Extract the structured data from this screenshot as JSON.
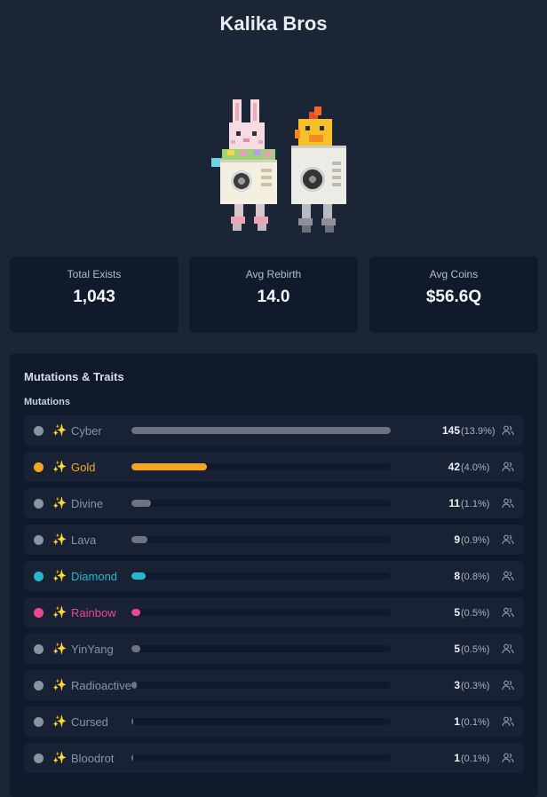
{
  "page": {
    "title": "Kalika Bros"
  },
  "stats": [
    {
      "label": "Total Exists",
      "value": "1,043"
    },
    {
      "label": "Avg Rebirth",
      "value": "14.0"
    },
    {
      "label": "Avg Coins",
      "value": "$56.6Q"
    }
  ],
  "panel": {
    "title": "Mutations & Traits",
    "section": "Mutations"
  },
  "mutations": [
    {
      "name": "Cyber",
      "count": "145",
      "pct": "(13.9%)",
      "fraction": 1.0,
      "dot_color": "#8b93a1",
      "name_color": "#8b93a1",
      "bar_color": "#6d7480"
    },
    {
      "name": "Gold",
      "count": "42",
      "pct": "(4.0%)",
      "fraction": 0.29,
      "dot_color": "#f5a524",
      "name_color": "#f5a524",
      "bar_color": "#f5a524"
    },
    {
      "name": "Divine",
      "count": "11",
      "pct": "(1.1%)",
      "fraction": 0.076,
      "dot_color": "#8b93a1",
      "name_color": "#8b93a1",
      "bar_color": "#6d7480"
    },
    {
      "name": "Lava",
      "count": "9",
      "pct": "(0.9%)",
      "fraction": 0.062,
      "dot_color": "#8b93a1",
      "name_color": "#8b93a1",
      "bar_color": "#6d7480"
    },
    {
      "name": "Diamond",
      "count": "8",
      "pct": "(0.8%)",
      "fraction": 0.055,
      "dot_color": "#22b8cf",
      "name_color": "#22b8cf",
      "bar_color": "#22b8cf"
    },
    {
      "name": "Rainbow",
      "count": "5",
      "pct": "(0.5%)",
      "fraction": 0.034,
      "dot_color": "#e84a8f",
      "name_color": "#e84a8f",
      "bar_color": "#e84a8f"
    },
    {
      "name": "YinYang",
      "count": "5",
      "pct": "(0.5%)",
      "fraction": 0.034,
      "dot_color": "#8b93a1",
      "name_color": "#8b93a1",
      "bar_color": "#6d7480"
    },
    {
      "name": "Radioactive",
      "count": "3",
      "pct": "(0.3%)",
      "fraction": 0.021,
      "dot_color": "#8b93a1",
      "name_color": "#8b93a1",
      "bar_color": "#6d7480"
    },
    {
      "name": "Cursed",
      "count": "1",
      "pct": "(0.1%)",
      "fraction": 0.007,
      "dot_color": "#8b93a1",
      "name_color": "#8b93a1",
      "bar_color": "#6d7480"
    },
    {
      "name": "Bloodrot",
      "count": "1",
      "pct": "(0.1%)",
      "fraction": 0.007,
      "dot_color": "#8b93a1",
      "name_color": "#8b93a1",
      "bar_color": "#6d7480"
    }
  ],
  "icons": {
    "mutation_icon": "sparkles-icon",
    "owners_icon": "users-icon"
  }
}
